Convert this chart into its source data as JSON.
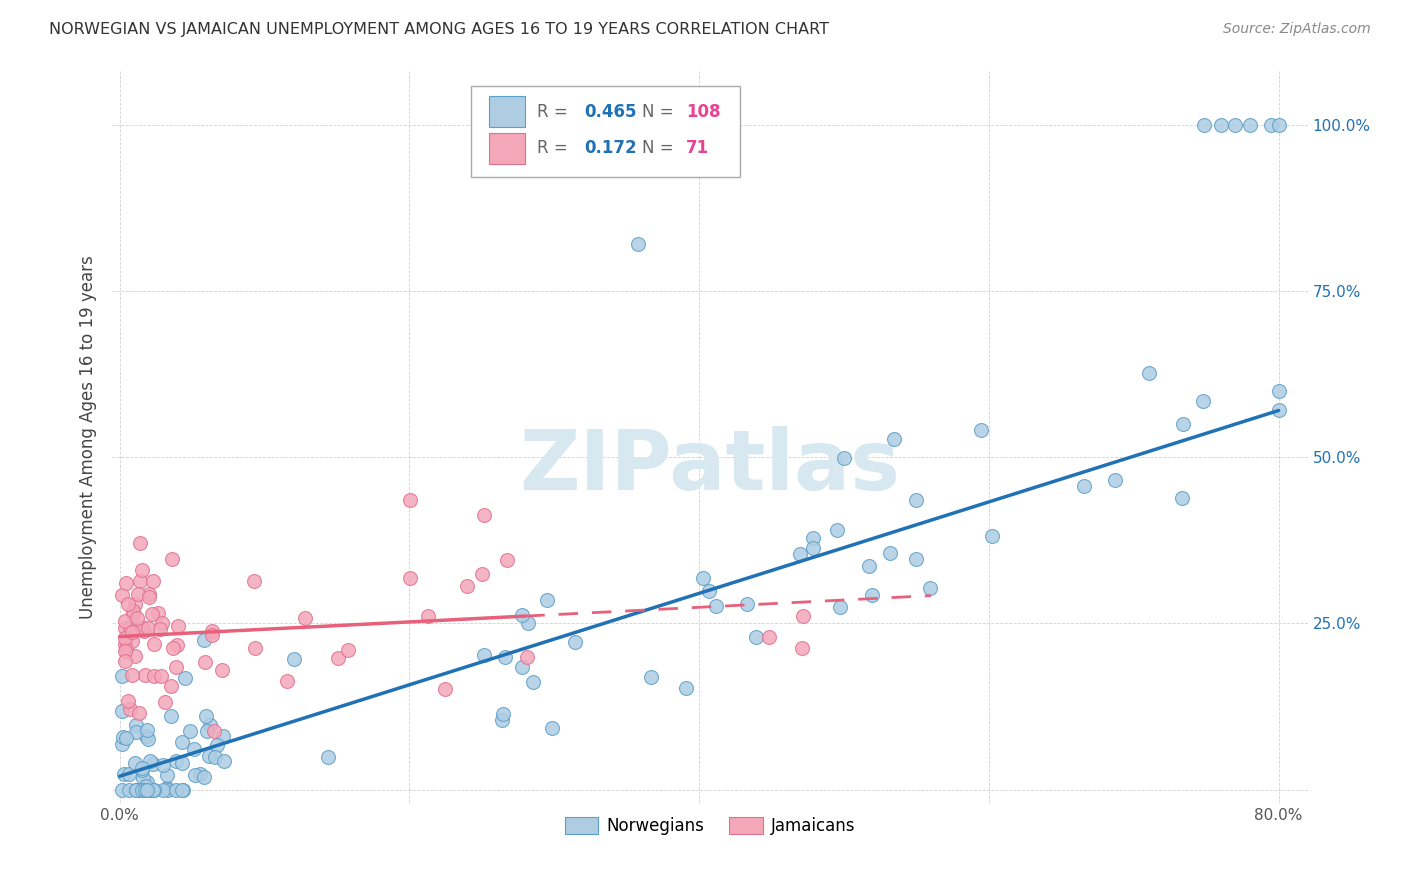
{
  "title": "NORWEGIAN VS JAMAICAN UNEMPLOYMENT AMONG AGES 16 TO 19 YEARS CORRELATION CHART",
  "source": "Source: ZipAtlas.com",
  "ylabel": "Unemployment Among Ages 16 to 19 years",
  "xlim": [
    -0.005,
    0.82
  ],
  "ylim": [
    -0.02,
    1.08
  ],
  "x_ticks": [
    0.0,
    0.2,
    0.4,
    0.6,
    0.8
  ],
  "x_tick_labels": [
    "0.0%",
    "",
    "",
    "",
    "80.0%"
  ],
  "y_ticks_right": [
    0.25,
    0.5,
    0.75,
    1.0
  ],
  "y_tick_labels_right": [
    "25.0%",
    "50.0%",
    "75.0%",
    "100.0%"
  ],
  "norwegian_R": 0.465,
  "norwegian_N": 108,
  "jamaican_R": 0.172,
  "jamaican_N": 71,
  "norwegian_color": "#aecde3",
  "jamaican_color": "#f4a7b9",
  "norwegian_edge_color": "#5b9ec9",
  "jamaican_edge_color": "#e07090",
  "norwegian_line_color": "#2171b5",
  "jamaican_line_color": "#e8607a",
  "jamaican_dash_color": "#e8607a",
  "watermark_color": "#d8e8f0",
  "watermark_text": "ZIPatlas"
}
